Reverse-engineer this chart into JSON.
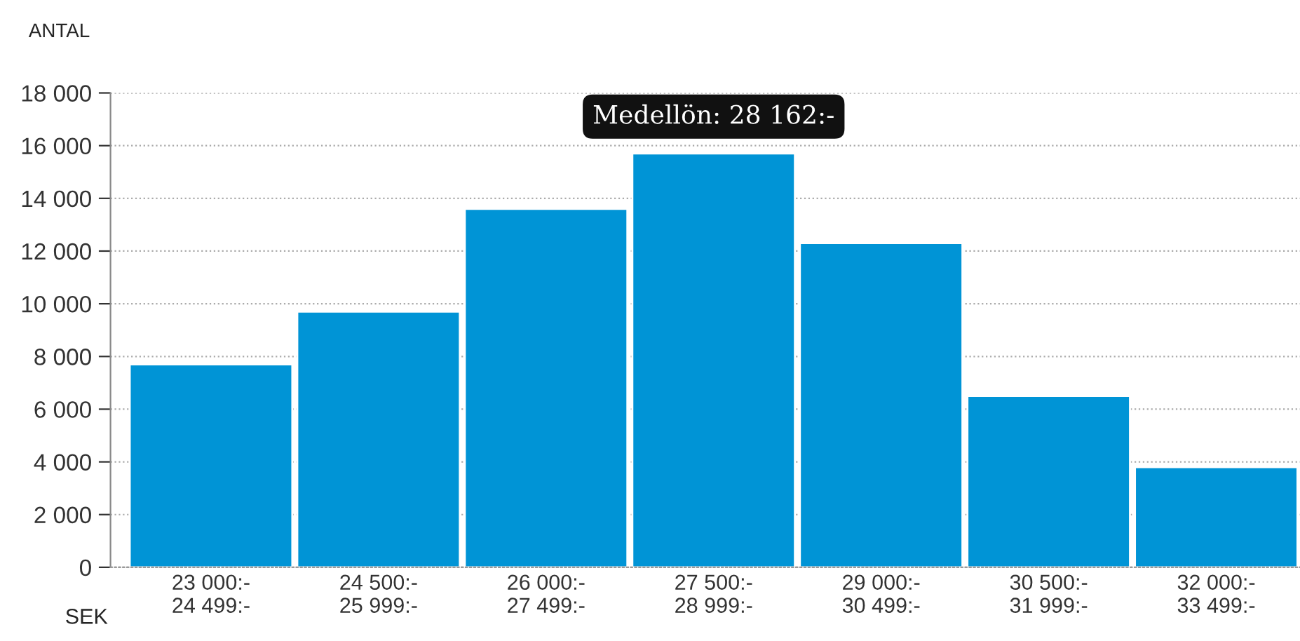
{
  "chart_data": {
    "type": "bar",
    "ylabel": "ANTAL",
    "xlabel": "SEK",
    "categories": [
      "23 000:-\n24 499:-",
      "24 500:-\n25 999:-",
      "26 000:-\n27 499:-",
      "27 500:-\n28 999:-",
      "29 000:-\n30 499:-",
      "30 500:-\n31 999:-",
      "32 000:-\n33 499:-"
    ],
    "values": [
      7700,
      9700,
      13600,
      15700,
      12300,
      6500,
      3800
    ],
    "color": "#0094d6",
    "ylim": [
      0,
      18000
    ],
    "yticks": [
      {
        "value": 0,
        "label": "0"
      },
      {
        "value": 2000,
        "label": "2 000"
      },
      {
        "value": 4000,
        "label": "4 000"
      },
      {
        "value": 6000,
        "label": "6 000"
      },
      {
        "value": 8000,
        "label": "8 000"
      },
      {
        "value": 10000,
        "label": "10 000"
      },
      {
        "value": 12000,
        "label": "12 000"
      },
      {
        "value": 14000,
        "label": "14 000"
      },
      {
        "value": 16000,
        "label": "16 000"
      },
      {
        "value": 18000,
        "label": "18 000"
      }
    ],
    "grid": "y",
    "annotations": [
      "Medellön: 28 162:-"
    ]
  }
}
